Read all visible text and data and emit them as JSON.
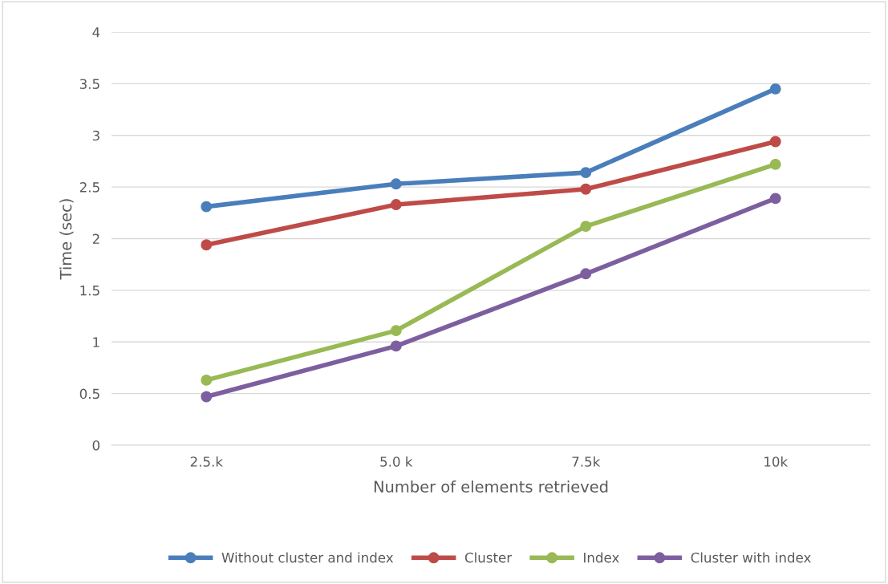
{
  "chart_data": {
    "type": "line",
    "xlabel": "Number of elements retrieved",
    "ylabel": "Time (sec)",
    "categories": [
      "2.5.k",
      "5.0 k",
      "7.5k",
      "10k"
    ],
    "series": [
      {
        "name": "Without cluster and index",
        "color": "#4a7ebb",
        "values": [
          2.31,
          2.53,
          2.64,
          3.45
        ]
      },
      {
        "name": "Cluster",
        "color": "#be4b48",
        "values": [
          1.94,
          2.33,
          2.48,
          2.94
        ]
      },
      {
        "name": "Index",
        "color": "#98b954",
        "values": [
          0.63,
          1.11,
          2.12,
          2.72
        ]
      },
      {
        "name": "Cluster with index",
        "color": "#7d5fa0",
        "values": [
          0.47,
          0.96,
          1.66,
          2.39
        ]
      }
    ],
    "ylim": [
      0,
      4
    ],
    "yticks": [
      0,
      0.5,
      1,
      1.5,
      2,
      2.5,
      3,
      3.5,
      4
    ],
    "grid": "y",
    "legend": "bottom",
    "marker": "circle",
    "line_style": "solid"
  }
}
